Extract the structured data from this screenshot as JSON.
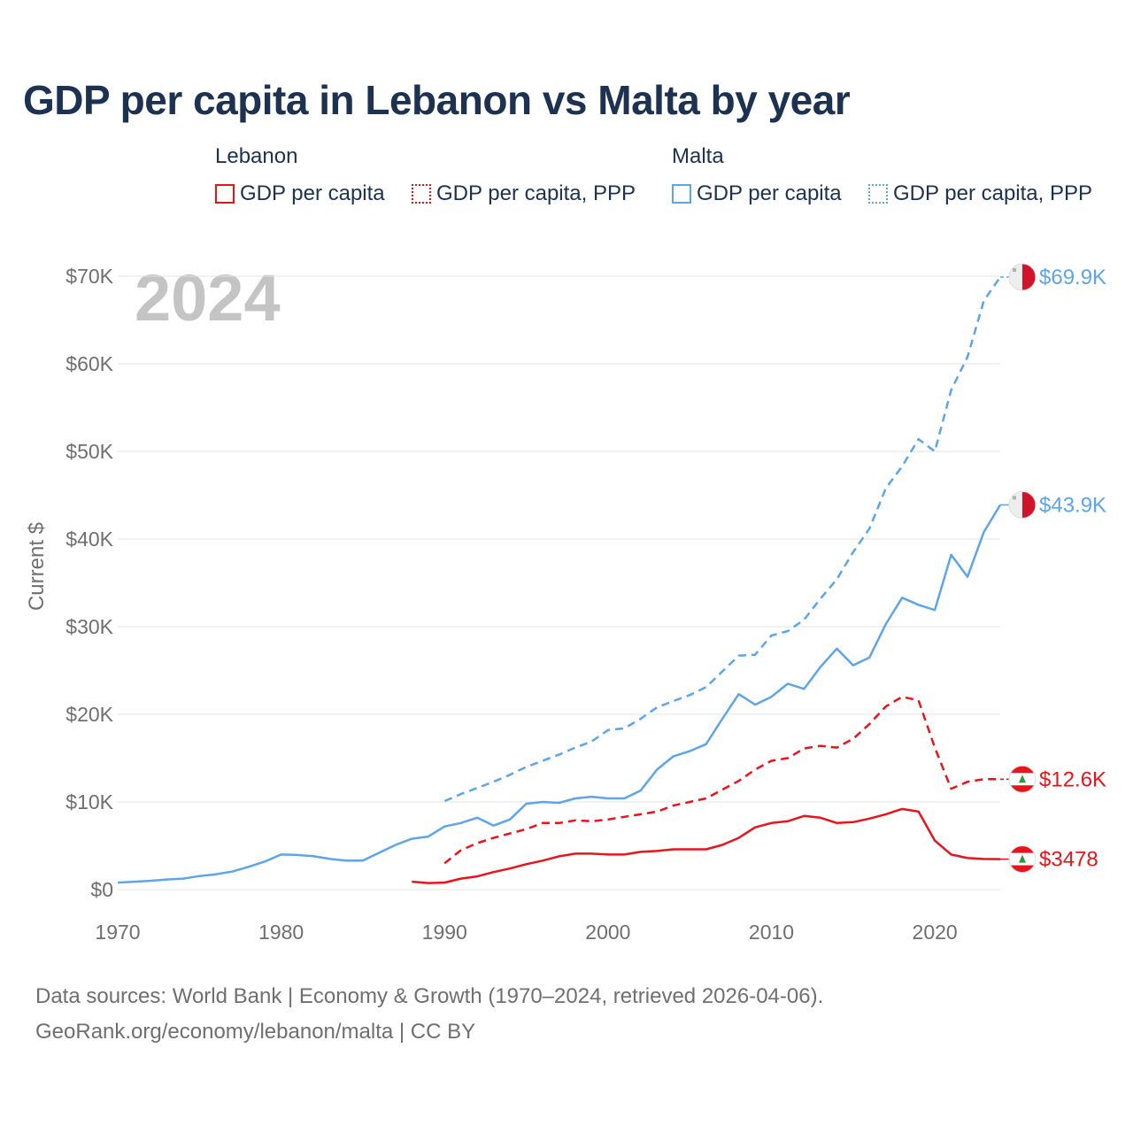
{
  "title": "GDP per capita in Lebanon vs Malta by year",
  "legend": {
    "groups": [
      {
        "name": "Lebanon",
        "items": [
          "GDP per capita",
          "GDP per capita, PPP"
        ]
      },
      {
        "name": "Malta",
        "items": [
          "GDP per capita",
          "GDP per capita, PPP"
        ]
      }
    ]
  },
  "colors": {
    "lebanon": "#e8141c",
    "malta": "#5da5e8",
    "title": "#1c3250",
    "grid": "#e3e3e3",
    "axis_text": "#6f6f6f",
    "year_watermark": "#c4c4c4"
  },
  "footer": {
    "line1": "Data sources: World Bank | Economy & Growth (1970–2024, retrieved 2026-04-06).",
    "line2": "GeoRank.org/economy/lebanon/malta | CC BY"
  },
  "chart_data": {
    "type": "line",
    "title": "GDP per capita in Lebanon vs Malta by year",
    "ylabel": "Current $",
    "xlabel": "",
    "year_label": "2024",
    "xlim": [
      1970,
      2024
    ],
    "ylim": [
      0,
      70000
    ],
    "x_ticks": [
      1970,
      1980,
      1990,
      2000,
      2010,
      2020
    ],
    "y_ticks": [
      0,
      10000,
      20000,
      30000,
      40000,
      50000,
      60000,
      70000
    ],
    "y_tick_labels": [
      "$0",
      "$10K",
      "$20K",
      "$30K",
      "$40K",
      "$50K",
      "$60K",
      "$70K"
    ],
    "grid": true,
    "series": [
      {
        "name": "Malta GDP per capita",
        "country": "malta",
        "style": "solid",
        "end_label": "$43.9K",
        "x": [
          1970,
          1971,
          1972,
          1973,
          1974,
          1975,
          1976,
          1977,
          1978,
          1979,
          1980,
          1981,
          1982,
          1983,
          1984,
          1985,
          1986,
          1987,
          1988,
          1989,
          1990,
          1991,
          1992,
          1993,
          1994,
          1995,
          1996,
          1997,
          1998,
          1999,
          2000,
          2001,
          2002,
          2003,
          2004,
          2005,
          2006,
          2007,
          2008,
          2009,
          2010,
          2011,
          2012,
          2013,
          2014,
          2015,
          2016,
          2017,
          2018,
          2019,
          2020,
          2021,
          2022,
          2023,
          2024
        ],
        "values": [
          800,
          900,
          1000,
          1150,
          1250,
          1550,
          1750,
          2050,
          2600,
          3200,
          4000,
          3950,
          3800,
          3500,
          3300,
          3300,
          4200,
          5100,
          5800,
          6050,
          7200,
          7600,
          8200,
          7300,
          8000,
          9800,
          10000,
          9900,
          10400,
          10600,
          10400,
          10400,
          11300,
          13700,
          15200,
          15800,
          16600,
          19500,
          22300,
          21100,
          22000,
          23500,
          22900,
          25400,
          27500,
          25600,
          26500,
          30300,
          33300,
          32500,
          31900,
          38200,
          35700,
          40800,
          43900
        ]
      },
      {
        "name": "Malta GDP per capita, PPP",
        "country": "malta",
        "style": "dashed",
        "end_label": "$69.9K",
        "x": [
          1990,
          1991,
          1992,
          1993,
          1994,
          1995,
          1996,
          1997,
          1998,
          1999,
          2000,
          2001,
          2002,
          2003,
          2004,
          2005,
          2006,
          2007,
          2008,
          2009,
          2010,
          2011,
          2012,
          2013,
          2014,
          2015,
          2016,
          2017,
          2018,
          2019,
          2020,
          2021,
          2022,
          2023,
          2024
        ],
        "values": [
          10100,
          10900,
          11600,
          12300,
          13100,
          14000,
          14700,
          15400,
          16200,
          16900,
          18200,
          18400,
          19500,
          20800,
          21500,
          22200,
          23100,
          24900,
          26700,
          26800,
          29000,
          29500,
          30800,
          33200,
          35400,
          38500,
          41200,
          45800,
          48300,
          51400,
          50000,
          57000,
          60800,
          67200,
          69900
        ]
      },
      {
        "name": "Lebanon GDP per capita",
        "country": "lebanon",
        "style": "solid",
        "end_label": "$3478",
        "x": [
          1988,
          1989,
          1990,
          1991,
          1992,
          1993,
          1994,
          1995,
          1996,
          1997,
          1998,
          1999,
          2000,
          2001,
          2002,
          2003,
          2004,
          2005,
          2006,
          2007,
          2008,
          2009,
          2010,
          2011,
          2012,
          2013,
          2014,
          2015,
          2016,
          2017,
          2018,
          2019,
          2020,
          2021,
          2022,
          2023,
          2024
        ],
        "values": [
          900,
          750,
          800,
          1250,
          1500,
          2000,
          2400,
          2900,
          3300,
          3800,
          4100,
          4100,
          4000,
          4000,
          4300,
          4400,
          4600,
          4600,
          4600,
          5100,
          5900,
          7100,
          7600,
          7800,
          8400,
          8200,
          7600,
          7700,
          8100,
          8600,
          9200,
          8900,
          5600,
          4000,
          3600,
          3500,
          3478
        ]
      },
      {
        "name": "Lebanon GDP per capita, PPP",
        "country": "lebanon",
        "style": "dashed",
        "end_label": "$12.6K",
        "x": [
          1990,
          1991,
          1992,
          1993,
          1994,
          1995,
          1996,
          1997,
          1998,
          1999,
          2000,
          2001,
          2002,
          2003,
          2004,
          2005,
          2006,
          2007,
          2008,
          2009,
          2010,
          2011,
          2012,
          2013,
          2014,
          2015,
          2016,
          2017,
          2018,
          2019,
          2020,
          2021,
          2022,
          2023,
          2024
        ],
        "values": [
          3000,
          4500,
          5300,
          5900,
          6400,
          6900,
          7600,
          7600,
          7900,
          7800,
          8000,
          8300,
          8600,
          8900,
          9600,
          10000,
          10400,
          11400,
          12400,
          13700,
          14700,
          15000,
          16100,
          16400,
          16200,
          17200,
          18900,
          20900,
          22000,
          21600,
          16200,
          11500,
          12300,
          12600,
          12600
        ]
      }
    ]
  }
}
